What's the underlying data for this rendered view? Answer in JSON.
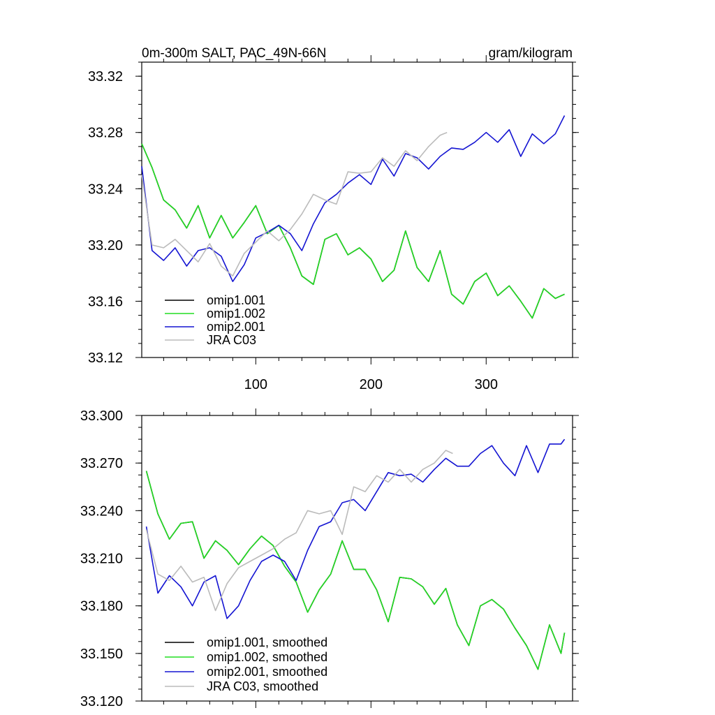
{
  "chart_data": [
    {
      "type": "line",
      "title": "0m-300m SALT, PAC_49N-66N",
      "units": "gram/kilogram",
      "xlabel": "",
      "ylabel": "",
      "xlim": [
        1,
        375
      ],
      "ylim": [
        33.12,
        33.33
      ],
      "x_ticks": [
        100,
        200,
        300
      ],
      "x_tick_labels": [
        "100",
        "200",
        "300"
      ],
      "y_ticks": [
        33.12,
        33.16,
        33.2,
        33.24,
        33.28,
        33.32
      ],
      "y_tick_labels": [
        "33.12",
        "33.16",
        "33.20",
        "33.24",
        "33.28",
        "33.32"
      ],
      "legend_position": "bottom-left",
      "series": [
        {
          "name": "omip1.001",
          "color": "#000000",
          "x": [
            1,
            10,
            20,
            30,
            40,
            50,
            60,
            70,
            80,
            90,
            100,
            110,
            120,
            130,
            140,
            150,
            160,
            170,
            180,
            190,
            200,
            210,
            220,
            230,
            240,
            250,
            260,
            270,
            280,
            290,
            300,
            310,
            320,
            330,
            340,
            350,
            360,
            368
          ],
          "y": [
            33.272,
            33.255,
            33.232,
            33.225,
            33.212,
            33.228,
            33.205,
            33.221,
            33.205,
            33.216,
            33.228,
            33.208,
            33.214,
            33.198,
            33.178,
            33.172,
            33.204,
            33.208,
            33.193,
            33.198,
            33.19,
            33.174,
            33.182,
            33.21,
            33.184,
            33.174,
            33.196,
            33.165,
            33.158,
            33.174,
            33.18,
            33.164,
            33.171,
            33.16,
            33.148,
            33.169,
            33.162,
            33.165
          ]
        },
        {
          "name": "omip1.002",
          "color": "#22dd22",
          "x": [
            1,
            10,
            20,
            30,
            40,
            50,
            60,
            70,
            80,
            90,
            100,
            110,
            120,
            130,
            140,
            150,
            160,
            170,
            180,
            190,
            200,
            210,
            220,
            230,
            240,
            250,
            260,
            270,
            280,
            290,
            300,
            310,
            320,
            330,
            340,
            350,
            360,
            368
          ],
          "y": [
            33.272,
            33.255,
            33.232,
            33.225,
            33.212,
            33.228,
            33.205,
            33.221,
            33.205,
            33.216,
            33.228,
            33.208,
            33.214,
            33.198,
            33.178,
            33.172,
            33.204,
            33.208,
            33.193,
            33.198,
            33.19,
            33.174,
            33.182,
            33.21,
            33.184,
            33.174,
            33.196,
            33.165,
            33.158,
            33.174,
            33.18,
            33.164,
            33.171,
            33.16,
            33.148,
            33.169,
            33.162,
            33.165
          ]
        },
        {
          "name": "omip2.001",
          "color": "#1414d2",
          "x": [
            1,
            10,
            20,
            30,
            40,
            50,
            60,
            70,
            80,
            90,
            100,
            110,
            120,
            130,
            140,
            150,
            160,
            170,
            180,
            190,
            200,
            210,
            220,
            230,
            240,
            250,
            260,
            270,
            280,
            290,
            300,
            310,
            320,
            330,
            340,
            350,
            360,
            368
          ],
          "y": [
            33.256,
            33.196,
            33.189,
            33.198,
            33.185,
            33.196,
            33.198,
            33.192,
            33.174,
            33.186,
            33.205,
            33.209,
            33.214,
            33.208,
            33.196,
            33.215,
            33.23,
            33.236,
            33.244,
            33.25,
            33.243,
            33.261,
            33.249,
            33.265,
            33.262,
            33.254,
            33.263,
            33.269,
            33.268,
            33.273,
            33.28,
            33.273,
            33.282,
            33.263,
            33.279,
            33.272,
            33.279,
            33.292
          ]
        },
        {
          "name": "JRA C03",
          "color": "#bbbbbb",
          "x": [
            1,
            10,
            20,
            30,
            40,
            50,
            60,
            70,
            80,
            90,
            100,
            110,
            120,
            130,
            140,
            150,
            160,
            170,
            180,
            190,
            200,
            210,
            220,
            230,
            240,
            250,
            260,
            266
          ],
          "y": [
            33.25,
            33.2,
            33.198,
            33.204,
            33.196,
            33.188,
            33.201,
            33.185,
            33.178,
            33.194,
            33.202,
            33.21,
            33.203,
            33.211,
            33.222,
            33.236,
            33.232,
            33.229,
            33.252,
            33.251,
            33.252,
            33.262,
            33.256,
            33.267,
            33.26,
            33.27,
            33.278,
            33.28
          ]
        }
      ]
    },
    {
      "type": "line",
      "title": "",
      "xlabel": "",
      "ylabel": "",
      "xlim": [
        1,
        375
      ],
      "ylim": [
        33.12,
        33.3
      ],
      "x_ticks": [
        100,
        200,
        300
      ],
      "x_tick_labels": [
        "",
        "",
        ""
      ],
      "y_ticks": [
        33.12,
        33.15,
        33.18,
        33.21,
        33.24,
        33.27,
        33.3
      ],
      "y_tick_labels": [
        "33.120",
        "33.150",
        "33.180",
        "33.210",
        "33.240",
        "33.270",
        "33.300"
      ],
      "legend_position": "bottom-left",
      "series": [
        {
          "name": "omip1.001, smoothed",
          "color": "#000000",
          "x": [
            5,
            15,
            25,
            35,
            45,
            55,
            65,
            75,
            85,
            95,
            105,
            115,
            125,
            135,
            145,
            155,
            165,
            175,
            185,
            195,
            205,
            215,
            225,
            235,
            245,
            255,
            265,
            275,
            285,
            295,
            305,
            315,
            325,
            335,
            345,
            355,
            365,
            368
          ],
          "y": [
            33.265,
            33.238,
            33.222,
            33.232,
            33.233,
            33.21,
            33.221,
            33.215,
            33.206,
            33.216,
            33.224,
            33.218,
            33.205,
            33.195,
            33.176,
            33.19,
            33.2,
            33.221,
            33.203,
            33.203,
            33.19,
            33.17,
            33.198,
            33.197,
            33.192,
            33.181,
            33.191,
            33.168,
            33.155,
            33.18,
            33.184,
            33.178,
            33.166,
            33.155,
            33.14,
            33.168,
            33.15,
            33.163
          ]
        },
        {
          "name": "omip1.002, smoothed",
          "color": "#22dd22",
          "x": [
            5,
            15,
            25,
            35,
            45,
            55,
            65,
            75,
            85,
            95,
            105,
            115,
            125,
            135,
            145,
            155,
            165,
            175,
            185,
            195,
            205,
            215,
            225,
            235,
            245,
            255,
            265,
            275,
            285,
            295,
            305,
            315,
            325,
            335,
            345,
            355,
            365,
            368
          ],
          "y": [
            33.265,
            33.238,
            33.222,
            33.232,
            33.233,
            33.21,
            33.221,
            33.215,
            33.206,
            33.216,
            33.224,
            33.218,
            33.205,
            33.195,
            33.176,
            33.19,
            33.2,
            33.221,
            33.203,
            33.203,
            33.19,
            33.17,
            33.198,
            33.197,
            33.192,
            33.181,
            33.191,
            33.168,
            33.155,
            33.18,
            33.184,
            33.178,
            33.166,
            33.155,
            33.14,
            33.168,
            33.15,
            33.163
          ]
        },
        {
          "name": "omip2.001, smoothed",
          "color": "#1414d2",
          "x": [
            5,
            15,
            25,
            35,
            45,
            55,
            65,
            75,
            85,
            95,
            105,
            115,
            125,
            135,
            145,
            155,
            165,
            175,
            185,
            195,
            205,
            215,
            225,
            235,
            245,
            255,
            265,
            275,
            285,
            295,
            305,
            315,
            325,
            335,
            345,
            355,
            365,
            368
          ],
          "y": [
            33.23,
            33.188,
            33.199,
            33.192,
            33.18,
            33.195,
            33.199,
            33.172,
            33.18,
            33.196,
            33.208,
            33.212,
            33.208,
            33.196,
            33.215,
            33.23,
            33.233,
            33.245,
            33.247,
            33.24,
            33.252,
            33.264,
            33.262,
            33.263,
            33.258,
            33.266,
            33.273,
            33.268,
            33.268,
            33.276,
            33.281,
            33.27,
            33.262,
            33.281,
            33.264,
            33.282,
            33.282,
            33.285
          ]
        },
        {
          "name": "JRA C03, smoothed",
          "color": "#bbbbbb",
          "x": [
            5,
            15,
            25,
            35,
            45,
            55,
            65,
            75,
            85,
            95,
            105,
            115,
            125,
            135,
            145,
            155,
            165,
            175,
            185,
            195,
            205,
            215,
            225,
            235,
            245,
            255,
            265,
            271
          ],
          "y": [
            33.228,
            33.2,
            33.196,
            33.205,
            33.195,
            33.198,
            33.177,
            33.194,
            33.204,
            33.208,
            33.212,
            33.216,
            33.222,
            33.226,
            33.24,
            33.238,
            33.24,
            33.225,
            33.255,
            33.252,
            33.262,
            33.258,
            33.266,
            33.258,
            33.266,
            33.27,
            33.278,
            33.276
          ]
        }
      ]
    }
  ]
}
